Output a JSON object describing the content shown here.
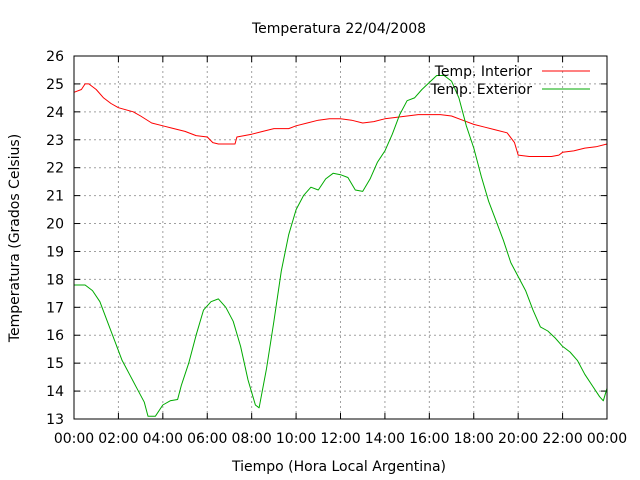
{
  "chart_data": {
    "type": "line",
    "title": "Temperatura 22/04/2008",
    "xlabel": "Tiempo (Hora Local Argentina)",
    "ylabel": "Temperatura (Grados Celsius)",
    "xlim": [
      "00:00",
      "24:00"
    ],
    "ylim": [
      13,
      26
    ],
    "grid": true,
    "legend_position": "top-right",
    "x_ticks": [
      "00:00",
      "02:00",
      "04:00",
      "06:00",
      "08:00",
      "10:00",
      "12:00",
      "14:00",
      "16:00",
      "18:00",
      "20:00",
      "22:00",
      "00:00"
    ],
    "y_ticks": [
      "13",
      "14",
      "15",
      "16",
      "17",
      "18",
      "19",
      "20",
      "21",
      "22",
      "23",
      "24",
      "25",
      "26"
    ],
    "series": [
      {
        "name": "Temp. Interior",
        "color": "#ff0000",
        "points": [
          [
            "00:00",
            24.7
          ],
          [
            "00:20",
            24.8
          ],
          [
            "00:30",
            25.0
          ],
          [
            "00:40",
            25.0
          ],
          [
            "01:00",
            24.8
          ],
          [
            "01:20",
            24.5
          ],
          [
            "01:40",
            24.3
          ],
          [
            "02:00",
            24.15
          ],
          [
            "02:40",
            24.0
          ],
          [
            "03:00",
            23.85
          ],
          [
            "03:30",
            23.6
          ],
          [
            "04:00",
            23.5
          ],
          [
            "04:30",
            23.4
          ],
          [
            "05:00",
            23.3
          ],
          [
            "05:30",
            23.15
          ],
          [
            "06:00",
            23.1
          ],
          [
            "06:15",
            22.9
          ],
          [
            "06:30",
            22.85
          ],
          [
            "07:00",
            22.85
          ],
          [
            "07:15",
            22.85
          ],
          [
            "07:20",
            23.1
          ],
          [
            "07:40",
            23.15
          ],
          [
            "08:00",
            23.2
          ],
          [
            "08:30",
            23.3
          ],
          [
            "09:00",
            23.4
          ],
          [
            "09:40",
            23.4
          ],
          [
            "10:00",
            23.5
          ],
          [
            "10:30",
            23.6
          ],
          [
            "11:00",
            23.7
          ],
          [
            "11:30",
            23.75
          ],
          [
            "12:00",
            23.75
          ],
          [
            "12:30",
            23.7
          ],
          [
            "13:00",
            23.6
          ],
          [
            "13:30",
            23.65
          ],
          [
            "14:00",
            23.75
          ],
          [
            "14:30",
            23.8
          ],
          [
            "15:00",
            23.85
          ],
          [
            "15:30",
            23.9
          ],
          [
            "16:00",
            23.9
          ],
          [
            "16:30",
            23.9
          ],
          [
            "17:00",
            23.85
          ],
          [
            "17:30",
            23.7
          ],
          [
            "18:00",
            23.55
          ],
          [
            "18:30",
            23.45
          ],
          [
            "19:00",
            23.35
          ],
          [
            "19:30",
            23.25
          ],
          [
            "19:50",
            22.9
          ],
          [
            "20:00",
            22.45
          ],
          [
            "20:30",
            22.4
          ],
          [
            "21:00",
            22.4
          ],
          [
            "21:30",
            22.4
          ],
          [
            "21:50",
            22.45
          ],
          [
            "22:00",
            22.55
          ],
          [
            "22:30",
            22.6
          ],
          [
            "23:00",
            22.7
          ],
          [
            "23:30",
            22.75
          ],
          [
            "24:00",
            22.85
          ]
        ]
      },
      {
        "name": "Temp. Exterior",
        "color": "#00aa00",
        "points": [
          [
            "00:00",
            17.8
          ],
          [
            "00:30",
            17.8
          ],
          [
            "00:50",
            17.6
          ],
          [
            "01:10",
            17.2
          ],
          [
            "01:30",
            16.5
          ],
          [
            "01:50",
            15.8
          ],
          [
            "02:10",
            15.1
          ],
          [
            "02:30",
            14.6
          ],
          [
            "02:50",
            14.1
          ],
          [
            "03:10",
            13.6
          ],
          [
            "03:20",
            13.1
          ],
          [
            "03:40",
            13.1
          ],
          [
            "04:00",
            13.5
          ],
          [
            "04:20",
            13.65
          ],
          [
            "04:40",
            13.7
          ],
          [
            "04:50",
            14.2
          ],
          [
            "05:10",
            15.0
          ],
          [
            "05:30",
            16.0
          ],
          [
            "05:50",
            16.9
          ],
          [
            "06:10",
            17.2
          ],
          [
            "06:30",
            17.3
          ],
          [
            "06:50",
            17.0
          ],
          [
            "07:10",
            16.5
          ],
          [
            "07:30",
            15.6
          ],
          [
            "07:50",
            14.4
          ],
          [
            "08:10",
            13.5
          ],
          [
            "08:20",
            13.4
          ],
          [
            "08:40",
            14.8
          ],
          [
            "09:00",
            16.5
          ],
          [
            "09:20",
            18.3
          ],
          [
            "09:40",
            19.6
          ],
          [
            "10:00",
            20.5
          ],
          [
            "10:20",
            21.0
          ],
          [
            "10:40",
            21.3
          ],
          [
            "11:00",
            21.2
          ],
          [
            "11:20",
            21.6
          ],
          [
            "11:40",
            21.8
          ],
          [
            "12:00",
            21.75
          ],
          [
            "12:20",
            21.65
          ],
          [
            "12:40",
            21.2
          ],
          [
            "13:00",
            21.15
          ],
          [
            "13:20",
            21.6
          ],
          [
            "13:40",
            22.2
          ],
          [
            "14:00",
            22.6
          ],
          [
            "14:20",
            23.2
          ],
          [
            "14:40",
            23.9
          ],
          [
            "15:00",
            24.4
          ],
          [
            "15:20",
            24.5
          ],
          [
            "15:40",
            24.8
          ],
          [
            "16:00",
            25.05
          ],
          [
            "16:20",
            25.3
          ],
          [
            "16:40",
            25.3
          ],
          [
            "17:00",
            25.1
          ],
          [
            "17:20",
            24.5
          ],
          [
            "17:40",
            23.5
          ],
          [
            "18:00",
            22.7
          ],
          [
            "18:20",
            21.7
          ],
          [
            "18:40",
            20.8
          ],
          [
            "19:00",
            20.1
          ],
          [
            "19:20",
            19.4
          ],
          [
            "19:40",
            18.6
          ],
          [
            "20:00",
            18.1
          ],
          [
            "20:20",
            17.6
          ],
          [
            "20:40",
            16.9
          ],
          [
            "21:00",
            16.3
          ],
          [
            "21:20",
            16.15
          ],
          [
            "21:40",
            15.9
          ],
          [
            "22:00",
            15.6
          ],
          [
            "22:20",
            15.4
          ],
          [
            "22:40",
            15.1
          ],
          [
            "23:00",
            14.6
          ],
          [
            "23:20",
            14.2
          ],
          [
            "23:40",
            13.8
          ],
          [
            "23:50",
            13.65
          ],
          [
            "24:00",
            14.1
          ]
        ]
      }
    ]
  }
}
